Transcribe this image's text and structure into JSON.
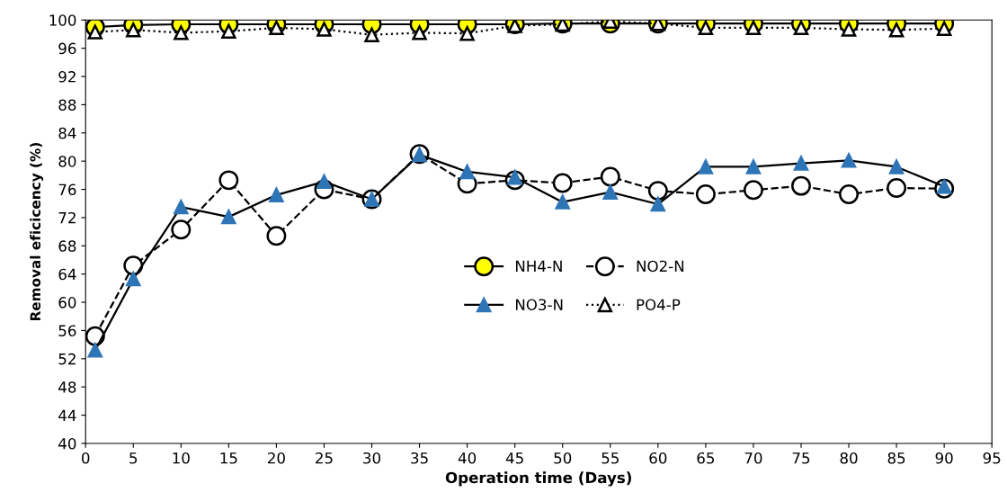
{
  "chart_data": {
    "type": "line",
    "xlabel": "Operation time (Days)",
    "ylabel": "Removal eficicency (%)",
    "x": [
      1,
      5,
      10,
      15,
      20,
      25,
      30,
      35,
      40,
      45,
      50,
      55,
      60,
      65,
      70,
      75,
      80,
      85,
      90
    ],
    "xlim": [
      0,
      95
    ],
    "xticks": [
      0,
      5,
      10,
      15,
      20,
      25,
      30,
      35,
      40,
      45,
      50,
      55,
      60,
      65,
      70,
      75,
      80,
      85,
      90,
      95
    ],
    "ylim": [
      40,
      100
    ],
    "yticks": [
      40,
      44,
      48,
      52,
      56,
      60,
      64,
      68,
      72,
      76,
      80,
      84,
      88,
      92,
      96,
      100
    ],
    "grid": false,
    "legend": "center",
    "series": [
      {
        "name": "NH4-N",
        "color": "#ffff00",
        "marker": "circle",
        "line_style": "solid",
        "values": [
          99.0,
          99.3,
          99.4,
          99.4,
          99.4,
          99.4,
          99.4,
          99.4,
          99.4,
          99.4,
          99.5,
          99.5,
          99.5,
          99.5,
          99.5,
          99.5,
          99.5,
          99.5,
          99.5
        ]
      },
      {
        "name": "NO2-N",
        "color": "#ffffff",
        "marker": "circle",
        "line_style": "dashed",
        "values": [
          55.2,
          65.2,
          70.3,
          77.3,
          69.4,
          76.0,
          74.6,
          81.0,
          76.8,
          77.3,
          76.9,
          77.8,
          75.8,
          75.3,
          75.9,
          76.5,
          75.3,
          76.2,
          76.1
        ]
      },
      {
        "name": "NO3-N",
        "color": "#2e75b6",
        "marker": "triangle",
        "line_style": "solid",
        "values": [
          53.2,
          63.3,
          73.5,
          72.1,
          75.2,
          77.1,
          74.6,
          80.9,
          78.5,
          77.7,
          74.2,
          75.6,
          73.9,
          79.2,
          79.2,
          79.7,
          80.1,
          79.2,
          76.4
        ]
      },
      {
        "name": "PO4-P",
        "color": "#ffffff",
        "marker": "triangle",
        "line_style": "dotted",
        "values": [
          98.3,
          98.6,
          98.2,
          98.4,
          98.9,
          98.7,
          97.9,
          98.2,
          98.1,
          99.2,
          99.4,
          99.8,
          99.5,
          98.9,
          98.9,
          98.9,
          98.7,
          98.6,
          98.8
        ]
      }
    ]
  }
}
